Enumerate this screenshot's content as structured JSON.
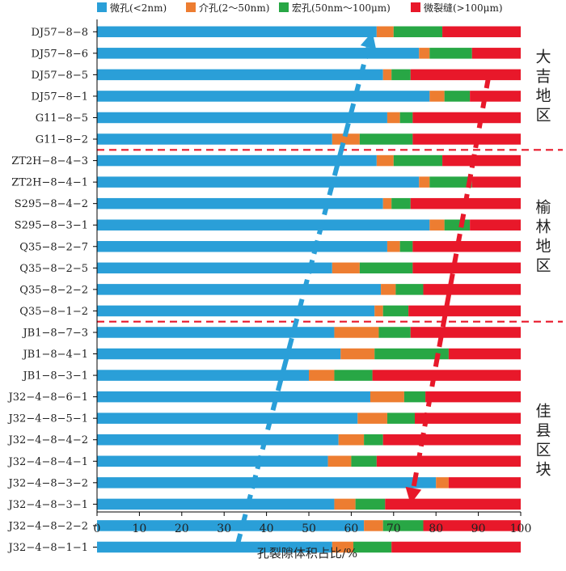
{
  "chart_data": {
    "type": "bar",
    "orientation": "horizontal",
    "stacked": true,
    "xlabel": "孔裂隙体积占比/%",
    "ylabel": "",
    "xlim": [
      0,
      100
    ],
    "xticks": [
      0,
      10,
      20,
      30,
      40,
      50,
      60,
      70,
      80,
      90,
      100
    ],
    "grid": false,
    "legend_position": "top",
    "categories": [
      "DJ57−8−8",
      "DJ57−8−6",
      "DJ57−8−5",
      "DJ57−8−1",
      "G11−8−5",
      "G11−8−2",
      "ZT2H−8−4−3",
      "ZT2H−8−4−1",
      "S295−8−4−2",
      "S295−8−3−1",
      "Q35−8−2−7",
      "Q35−8−2−5",
      "Q35−8−2−2",
      "Q35−8−1−2",
      "JB1−8−7−3",
      "JB1−8−4−1",
      "JB1−8−3−1",
      "J32−4−8−6−1",
      "J32−4−8−5−1",
      "J32−4−8−4−2",
      "J32−4−8−4−1",
      "J32−4−8−3−2",
      "J32−4−8−3−1",
      "J32−4−8−2−2",
      "J32−4−8−1−1"
    ],
    "series": [
      {
        "name": "微孔(<2nm)",
        "color": "#2a9fd8",
        "values": [
          66.0,
          76.0,
          67.5,
          78.5,
          68.5,
          55.5,
          66.0,
          76.0,
          67.5,
          78.5,
          68.5,
          55.5,
          67.0,
          65.5,
          56.0,
          57.5,
          50.0,
          64.5,
          61.5,
          57.0,
          54.5,
          80.0,
          56.0,
          63.0,
          55.5
        ]
      },
      {
        "name": "介孔(2～50nm)",
        "color": "#ed7d31",
        "values": [
          4.0,
          2.5,
          2.0,
          3.5,
          3.0,
          6.5,
          4.0,
          2.5,
          2.0,
          3.5,
          3.0,
          6.5,
          3.5,
          2.0,
          10.5,
          8.0,
          6.0,
          8.0,
          7.0,
          6.0,
          5.5,
          3.0,
          5.0,
          4.5,
          5.0
        ]
      },
      {
        "name": "宏孔(50nm～100μm)",
        "color": "#28a745",
        "values": [
          11.5,
          10.0,
          4.5,
          6.0,
          3.0,
          12.5,
          11.5,
          10.0,
          4.5,
          6.0,
          3.0,
          12.5,
          6.5,
          6.0,
          7.5,
          17.5,
          9.0,
          5.0,
          6.5,
          4.5,
          6.0,
          0.0,
          7.0,
          9.5,
          9.0
        ]
      },
      {
        "name": "微裂缝(>100μm)",
        "color": "#e8182a",
        "values": [
          18.5,
          11.5,
          26.0,
          12.0,
          25.5,
          25.5,
          18.5,
          11.5,
          26.0,
          12.0,
          25.5,
          25.5,
          23.0,
          26.5,
          26.0,
          17.0,
          35.0,
          22.5,
          25.0,
          32.5,
          34.0,
          17.0,
          32.0,
          23.0,
          30.5
        ]
      }
    ],
    "regions": [
      {
        "label": "大吉地区",
        "from_category": 0,
        "to_category": 5
      },
      {
        "label": "榆林地区",
        "from_category": 6,
        "to_category": 13
      },
      {
        "label": "佳县区块",
        "from_category": 14,
        "to_category": 24
      }
    ],
    "annotations": [
      {
        "type": "arrow",
        "color": "#2a9fd8",
        "style": "dashed",
        "description": "trend arrow, microporous share rising upward",
        "from": {
          "x": 33,
          "category": "J32−4−8−1−1"
        },
        "to": {
          "x": 65,
          "category": "DJ57−8−8"
        }
      },
      {
        "type": "arrow",
        "color": "#e8182a",
        "style": "dashed",
        "description": "trend arrow, microfracture boundary downward",
        "from": {
          "x": 92.5,
          "category": "DJ57−8−5"
        },
        "to": {
          "x": 74,
          "category": "J32−4−8−3−1"
        }
      }
    ]
  }
}
